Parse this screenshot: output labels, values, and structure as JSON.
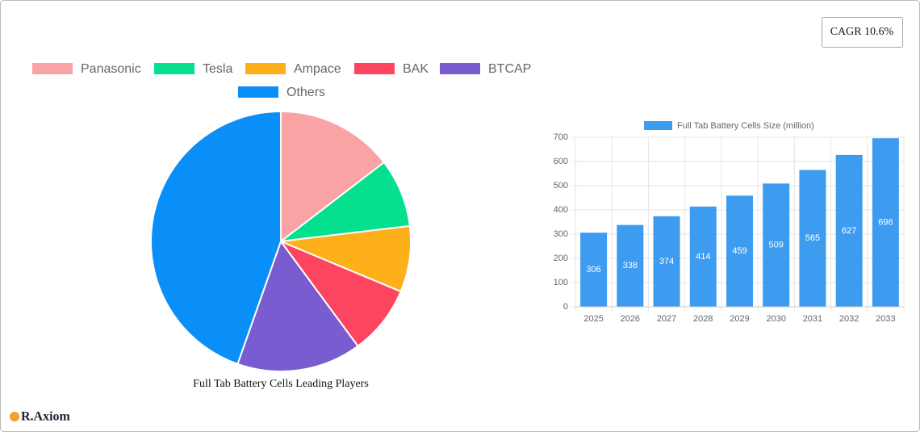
{
  "chart_data": [
    {
      "type": "pie",
      "title": "Full Tab Battery Cells Leading Players",
      "categories": [
        "Panasonic",
        "Tesla",
        "Ampace",
        "BAK",
        "BTCAP",
        "Others"
      ],
      "values": [
        14.6,
        8.5,
        8.2,
        8.6,
        15.5,
        44.6
      ],
      "colors": [
        "#f9a3a4",
        "#05e08f",
        "#fdb01a",
        "#fe4560",
        "#7a5cd1",
        "#0a8ef8"
      ]
    },
    {
      "type": "bar",
      "categories": [
        "2025",
        "2026",
        "2027",
        "2028",
        "2029",
        "2030",
        "2031",
        "2032",
        "2033"
      ],
      "series": [
        {
          "name": "Full Tab Battery Cells Size (million)",
          "color": "#3d9cf0",
          "values": [
            306,
            338,
            374,
            414,
            459,
            509,
            565,
            627,
            696
          ]
        }
      ],
      "ylim": [
        0,
        700
      ],
      "yticks": [
        0,
        100,
        200,
        300,
        400,
        500,
        600,
        700
      ],
      "grid": true
    }
  ],
  "badge": "CAGR 10.6%",
  "logo": "R.Axiom"
}
